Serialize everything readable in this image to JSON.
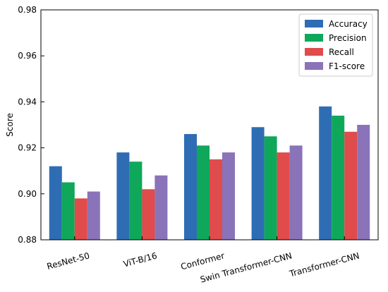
{
  "chart_data": {
    "type": "bar",
    "title": "",
    "xlabel": "",
    "ylabel": "Score",
    "ylim": [
      0.88,
      0.98
    ],
    "yticks": [
      "0.88",
      "0.90",
      "0.92",
      "0.94",
      "0.96",
      "0.98"
    ],
    "ytick_values": [
      0.88,
      0.9,
      0.92,
      0.94,
      0.96,
      0.98
    ],
    "grid": false,
    "legend_position": "top-right",
    "categories": [
      "ResNet-50",
      "ViT-B/16",
      "Conformer",
      "Swin Transformer-CNN",
      "Transformer-CNN"
    ],
    "series": [
      {
        "name": "Accuracy",
        "color": "#2e6db4",
        "values": [
          0.912,
          0.918,
          0.926,
          0.929,
          0.938
        ]
      },
      {
        "name": "Precision",
        "color": "#0fa85a",
        "values": [
          0.905,
          0.914,
          0.921,
          0.925,
          0.934
        ]
      },
      {
        "name": "Recall",
        "color": "#e04b4b",
        "values": [
          0.898,
          0.902,
          0.915,
          0.918,
          0.927
        ]
      },
      {
        "name": "F1-score",
        "color": "#8a73b8",
        "values": [
          0.901,
          0.908,
          0.918,
          0.921,
          0.93
        ]
      }
    ]
  }
}
